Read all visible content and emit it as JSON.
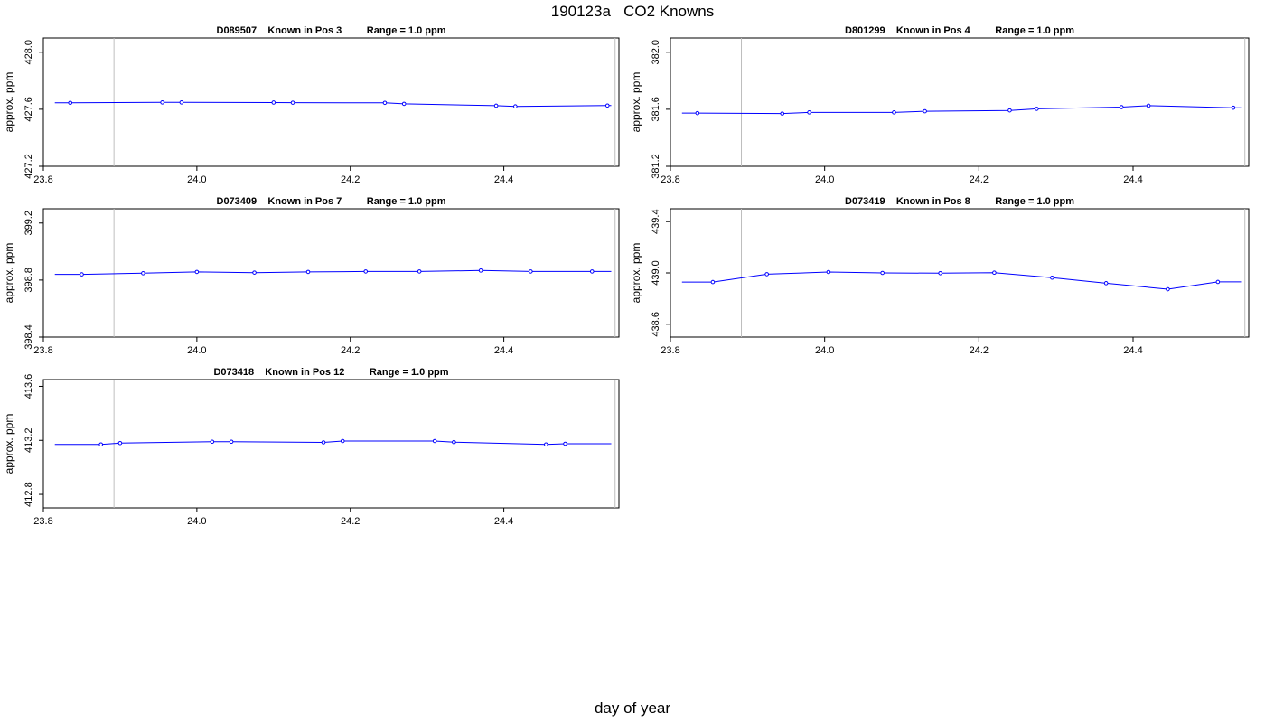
{
  "figure": {
    "title": "190123a   CO2 Knowns",
    "xlabel": "day of year"
  },
  "colors": {
    "series": "#0000ff",
    "vline": "#bebebe",
    "axis": "#000000"
  },
  "chart_data": [
    {
      "type": "line",
      "title": "D089507    Known in Pos 3         Range = 1.0 ppm",
      "ylabel": "approx. ppm",
      "xlim": [
        23.8,
        24.55
      ],
      "ylim": [
        427.2,
        428.1
      ],
      "xticks": [
        "23.8",
        "24.0",
        "24.2",
        "24.4"
      ],
      "yticks": [
        "427.2",
        "427.6",
        "428.0"
      ],
      "vlines": [
        23.892,
        24.545
      ],
      "grid": false,
      "x": [
        23.835,
        23.955,
        23.98,
        24.1,
        24.125,
        24.245,
        24.27,
        24.39,
        24.415,
        24.535
      ],
      "y": [
        427.645,
        427.648,
        427.648,
        427.647,
        427.646,
        427.645,
        427.638,
        427.625,
        427.62,
        427.626
      ],
      "line_start": [
        23.815,
        427.645
      ],
      "line_end": [
        24.54,
        427.626
      ]
    },
    {
      "type": "line",
      "title": "D801299    Known in Pos 4         Range = 1.0 ppm",
      "ylabel": "approx. ppm",
      "xlim": [
        23.8,
        24.55
      ],
      "ylim": [
        381.2,
        382.1
      ],
      "xticks": [
        "23.8",
        "24.0",
        "24.2",
        "24.4"
      ],
      "yticks": [
        "381.2",
        "381.6",
        "382.0"
      ],
      "vlines": [
        23.892,
        24.545
      ],
      "grid": false,
      "x": [
        23.835,
        23.945,
        23.98,
        24.09,
        24.13,
        24.24,
        24.275,
        24.385,
        24.42,
        24.53
      ],
      "y": [
        381.573,
        381.57,
        381.578,
        381.578,
        381.586,
        381.592,
        381.603,
        381.615,
        381.625,
        381.611
      ],
      "line_start": [
        23.815,
        381.573
      ],
      "line_end": [
        24.54,
        381.611
      ]
    },
    {
      "type": "line",
      "title": "D073409    Known in Pos 7         Range = 1.0 ppm",
      "ylabel": "approx. ppm",
      "xlim": [
        23.8,
        24.55
      ],
      "ylim": [
        398.4,
        399.3
      ],
      "xticks": [
        "23.8",
        "24.0",
        "24.2",
        "24.4"
      ],
      "yticks": [
        "398.4",
        "398.8",
        "399.2"
      ],
      "vlines": [
        23.892,
        24.545
      ],
      "grid": false,
      "x": [
        23.85,
        23.93,
        24.0,
        24.075,
        24.145,
        24.22,
        24.29,
        24.37,
        24.435,
        24.515
      ],
      "y": [
        398.84,
        398.848,
        398.857,
        398.852,
        398.857,
        398.86,
        398.86,
        398.867,
        398.86,
        398.86
      ],
      "line_start": [
        23.815,
        398.84
      ],
      "line_end": [
        24.54,
        398.86
      ]
    },
    {
      "type": "line",
      "title": "D073419    Known in Pos 8         Range = 1.0 ppm",
      "ylabel": "approx. ppm",
      "xlim": [
        23.8,
        24.55
      ],
      "ylim": [
        438.5,
        439.5
      ],
      "xticks": [
        "23.8",
        "24.0",
        "24.2",
        "24.4"
      ],
      "yticks": [
        "438.6",
        "439.0",
        "439.4"
      ],
      "vlines": [
        23.892,
        24.545
      ],
      "grid": false,
      "x": [
        23.855,
        23.925,
        24.005,
        24.075,
        24.15,
        24.22,
        24.295,
        24.365,
        24.445,
        24.51
      ],
      "y": [
        438.929,
        438.99,
        439.007,
        439.0,
        438.998,
        439.002,
        438.963,
        438.92,
        438.873,
        438.93
      ],
      "line_start": [
        23.815,
        438.929
      ],
      "line_end": [
        24.54,
        438.93
      ]
    },
    {
      "type": "line",
      "title": "D073418    Known in Pos 12         Range = 1.0 ppm",
      "ylabel": "approx. ppm",
      "xlim": [
        23.8,
        24.55
      ],
      "ylim": [
        412.7,
        413.65
      ],
      "xticks": [
        "23.8",
        "24.0",
        "24.2",
        "24.4"
      ],
      "yticks": [
        "412.8",
        "413.2",
        "413.6"
      ],
      "vlines": [
        23.892,
        24.545
      ],
      "grid": false,
      "x": [
        23.875,
        23.9,
        24.02,
        24.045,
        24.165,
        24.19,
        24.31,
        24.335,
        24.455,
        24.48
      ],
      "y": [
        413.17,
        413.18,
        413.19,
        413.19,
        413.185,
        413.195,
        413.195,
        413.187,
        413.17,
        413.175
      ],
      "line_start": [
        23.815,
        413.17
      ],
      "line_end": [
        24.54,
        413.175
      ]
    }
  ]
}
